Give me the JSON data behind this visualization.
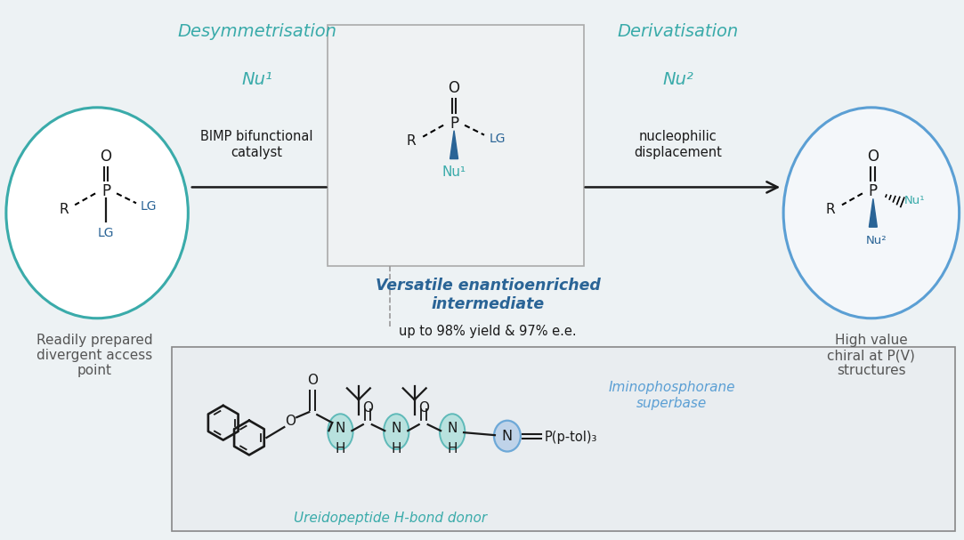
{
  "bg_color": "#edf2f4",
  "teal": "#3aabaa",
  "blue": "#2a6496",
  "blue_light": "#5b9fd4",
  "black": "#1a1a1a",
  "gray_text": "#555555",
  "title1": "Desymmetrisation",
  "title2": "Derivatisation",
  "label_left": "Readily prepared\ndivergent access\npoint",
  "label_right": "High value\nchiral at P(V)\nstructures",
  "label_mid_bold": "Versatile enantioenriched\nintermediate",
  "label_mid_sub": "up to 98% yield & 97% e.e.",
  "label_cat": "BIMP bifunctional\ncatalyst",
  "label_nucl": "nucleophilic\ndisplacement",
  "nu1": "Nu¹",
  "nu2": "Nu²",
  "bottom_label1": "Ureidopeptide H-bond donor",
  "bottom_label2": "Iminophosphorane\nsuperbase",
  "p_ptol": "P(p-tol)₃"
}
